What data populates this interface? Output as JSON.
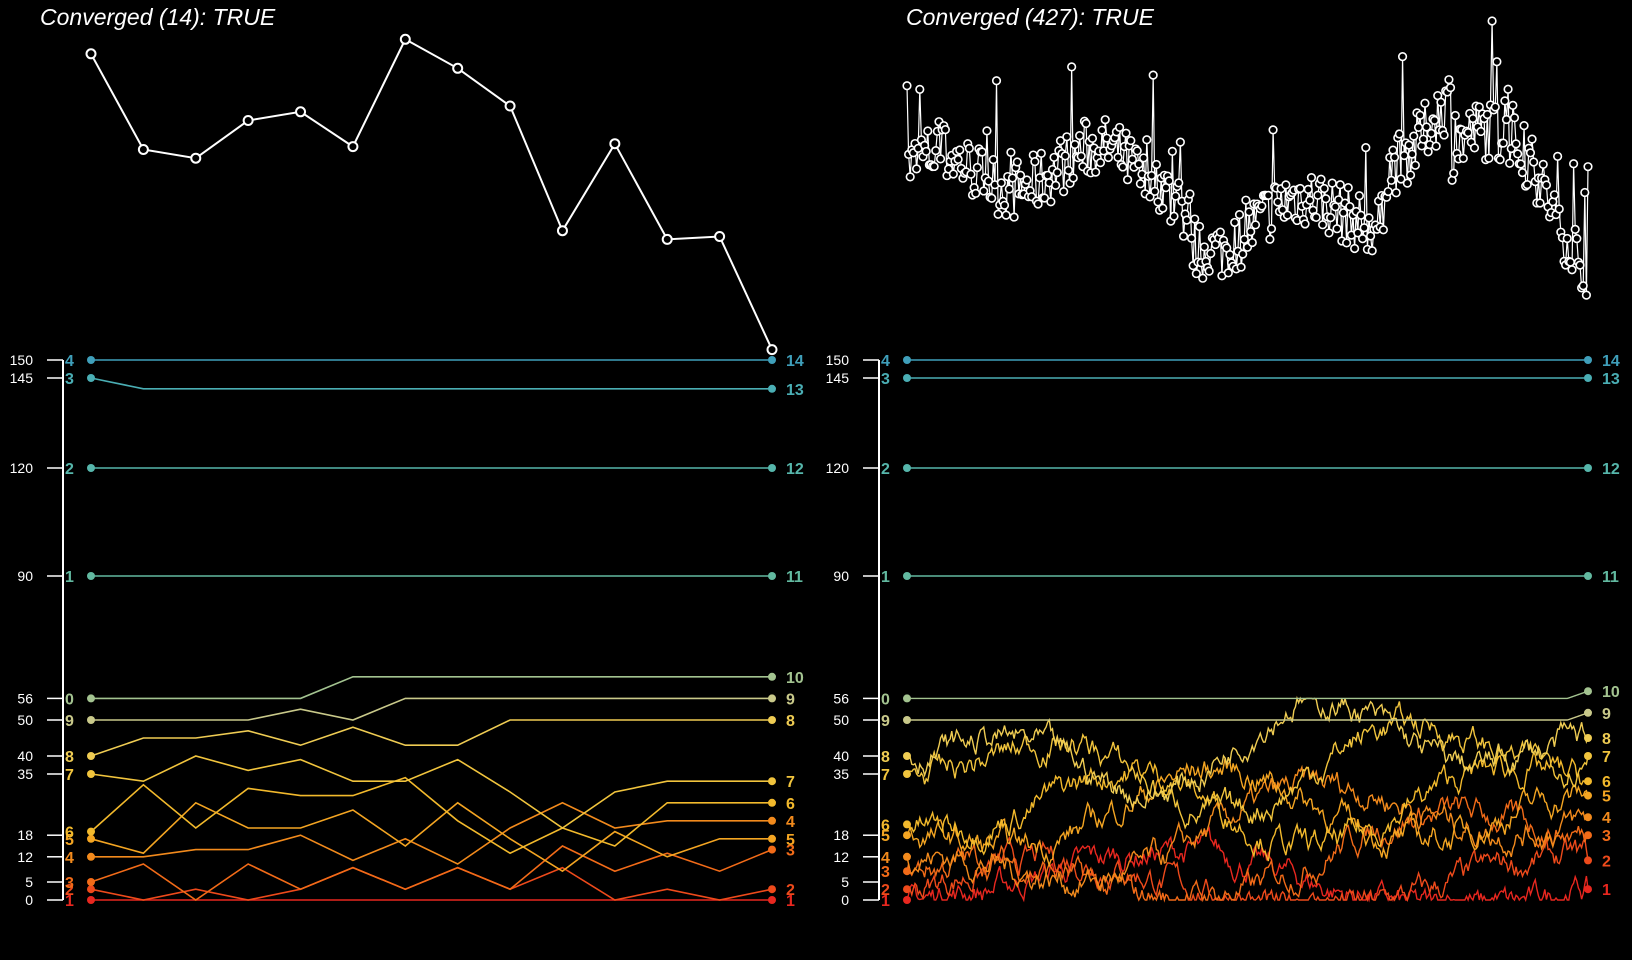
{
  "chart_data": [
    {
      "type": "line",
      "title": "Converged (14): TRUE",
      "top_series": {
        "x": [
          1,
          2,
          3,
          4,
          5,
          6,
          7,
          8,
          9,
          10,
          11,
          12,
          13,
          14
        ],
        "values": [
          0.88,
          0.55,
          0.52,
          0.65,
          0.68,
          0.56,
          0.93,
          0.83,
          0.7,
          0.27,
          0.57,
          0.24,
          0.25,
          -0.14
        ]
      },
      "bottom": {
        "type": "line",
        "yticks": [
          0,
          5,
          12,
          18,
          35,
          40,
          50,
          56,
          90,
          120,
          145,
          150
        ],
        "ylim": [
          0,
          150
        ],
        "steps": 14,
        "start_labels": [
          "1",
          "2",
          "3",
          "4",
          "5",
          "6",
          "7",
          "8",
          "9",
          "0",
          "1",
          "2",
          "3",
          "4"
        ],
        "end_labels": [
          "1",
          "2",
          "3",
          "4",
          "5",
          "6",
          "7",
          "8",
          "9",
          "10",
          "11",
          "12",
          "13",
          "14"
        ],
        "series": [
          {
            "values": [
              0,
              0,
              0,
              0,
              0,
              0,
              0,
              0,
              0,
              0,
              0,
              0,
              0,
              0
            ]
          },
          {
            "values": [
              3,
              0,
              3,
              0,
              3,
              9,
              3,
              9,
              3,
              9,
              0,
              3,
              0,
              3
            ]
          },
          {
            "values": [
              5,
              10,
              0,
              10,
              3,
              9,
              3,
              9,
              3,
              15,
              8,
              13,
              8,
              14
            ]
          },
          {
            "values": [
              12,
              12,
              14,
              14,
              18,
              11,
              17,
              10,
              20,
              27,
              20,
              22,
              22,
              22
            ]
          },
          {
            "values": [
              17,
              13,
              27,
              20,
              20,
              25,
              15,
              27,
              17,
              8,
              19,
              12,
              17,
              17
            ]
          },
          {
            "values": [
              19,
              32,
              20,
              31,
              29,
              29,
              34,
              22,
              13,
              20,
              15,
              27,
              27,
              27
            ]
          },
          {
            "values": [
              35,
              33,
              40,
              36,
              39,
              33,
              33,
              39,
              30,
              20,
              30,
              33,
              33,
              33
            ]
          },
          {
            "values": [
              40,
              45,
              45,
              47,
              43,
              48,
              43,
              43,
              50,
              50,
              50,
              50,
              50,
              50
            ]
          },
          {
            "values": [
              50,
              50,
              50,
              50,
              53,
              50,
              56,
              56,
              56,
              56,
              56,
              56,
              56,
              56
            ]
          },
          {
            "values": [
              56,
              56,
              56,
              56,
              56,
              62,
              62,
              62,
              62,
              62,
              62,
              62,
              62,
              62
            ]
          },
          {
            "values": [
              90,
              90,
              90,
              90,
              90,
              90,
              90,
              90,
              90,
              90,
              90,
              90,
              90,
              90
            ]
          },
          {
            "values": [
              120,
              120,
              120,
              120,
              120,
              120,
              120,
              120,
              120,
              120,
              120,
              120,
              120,
              120
            ]
          },
          {
            "values": [
              145,
              142,
              142,
              142,
              142,
              142,
              142,
              142,
              142,
              142,
              142,
              142,
              142,
              142
            ]
          },
          {
            "values": [
              150,
              150,
              150,
              150,
              150,
              150,
              150,
              150,
              150,
              150,
              150,
              150,
              150,
              150
            ]
          }
        ]
      }
    },
    {
      "type": "line",
      "title": "Converged (427): TRUE",
      "top_series": {
        "x_count": 427
      },
      "bottom": {
        "type": "line",
        "yticks": [
          0,
          5,
          12,
          18,
          35,
          40,
          50,
          56,
          90,
          120,
          145,
          150
        ],
        "ylim": [
          0,
          150
        ],
        "steps": 427,
        "start_labels": [
          "1",
          "2",
          "3",
          "4",
          "5",
          "6",
          "7",
          "8",
          "9",
          "0",
          "1",
          "2",
          "3",
          "4"
        ],
        "end_labels": [
          "1",
          "2",
          "3",
          "4",
          "5",
          "6",
          "7",
          "8",
          "9",
          "10",
          "11",
          "12",
          "13",
          "14"
        ],
        "series": [
          {
            "start": 0,
            "end": 3
          },
          {
            "start": 3,
            "end": 11
          },
          {
            "start": 8,
            "end": 18
          },
          {
            "start": 12,
            "end": 23
          },
          {
            "start": 18,
            "end": 29
          },
          {
            "start": 21,
            "end": 33
          },
          {
            "start": 35,
            "end": 40
          },
          {
            "start": 40,
            "end": 45
          },
          {
            "start": 50,
            "end": 52
          },
          {
            "start": 56,
            "end": 58
          },
          {
            "start": 90,
            "end": 90
          },
          {
            "start": 120,
            "end": 120
          },
          {
            "start": 145,
            "end": 145
          },
          {
            "start": 150,
            "end": 150
          }
        ]
      }
    }
  ]
}
